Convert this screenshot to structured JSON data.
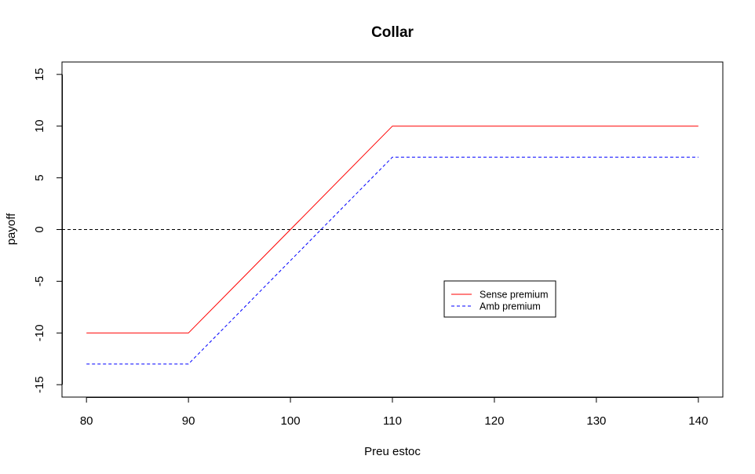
{
  "chart_data": {
    "type": "line",
    "title": "Collar",
    "xlabel": "Preu estoc",
    "ylabel": "payoff",
    "xlim": [
      77.6,
      142.4
    ],
    "ylim": [
      -16.2,
      16.2
    ],
    "xticks": [
      80,
      90,
      100,
      110,
      120,
      130,
      140
    ],
    "yticks": [
      -15,
      -10,
      -5,
      0,
      5,
      10,
      15
    ],
    "grid": false,
    "legend_position": "center-right",
    "series": [
      {
        "name": "Sense premium",
        "color": "#ff0000",
        "dash": "solid",
        "x": [
          80,
          90,
          110,
          140
        ],
        "y": [
          -10,
          -10,
          10,
          10
        ]
      },
      {
        "name": "Amb premium",
        "color": "#0000ff",
        "dash": "dashed",
        "x": [
          80,
          90,
          110,
          140
        ],
        "y": [
          -13,
          -13,
          7,
          7
        ]
      }
    ],
    "reference_lines": [
      {
        "axis": "y",
        "value": 0,
        "color": "#000000",
        "dash": "dashed"
      }
    ]
  }
}
